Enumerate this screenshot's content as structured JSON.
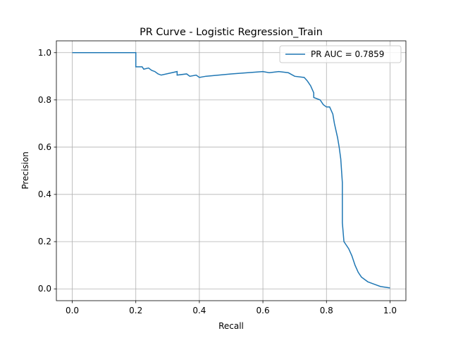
{
  "chart_data": {
    "type": "line",
    "title": "PR Curve - Logistic Regression_Train",
    "x_label": "Recall",
    "y_label": "Precision",
    "xlim": [
      -0.05,
      1.05
    ],
    "ylim": [
      -0.05,
      1.05
    ],
    "xticks": [
      {
        "value": 0,
        "label": "0.0"
      },
      0.2,
      0.4,
      0.6,
      0.8,
      {
        "value": 1,
        "label": "1.0"
      }
    ],
    "yticks": [
      {
        "value": 0,
        "label": "0.0"
      },
      0.2,
      0.4,
      0.6,
      0.8,
      {
        "value": 1,
        "label": "1.0"
      }
    ],
    "grid": true,
    "legend": "upper right",
    "series": [
      {
        "name": "PR AUC = 0.7859",
        "color": "#1f77b4",
        "x": [
          0,
          0.2,
          0.2,
          0.22,
          0.225,
          0.24,
          0.25,
          0.26,
          0.27,
          0.28,
          0.33,
          0.33,
          0.36,
          0.37,
          0.39,
          0.4,
          0.42,
          0.5,
          0.6,
          0.62,
          0.65,
          0.68,
          0.7,
          0.73,
          0.74,
          0.75,
          0.76,
          0.76,
          0.78,
          0.79,
          0.8,
          0.81,
          0.82,
          0.825,
          0.83,
          0.835,
          0.84,
          0.845,
          0.85,
          0.85,
          0.855,
          0.86,
          0.87,
          0.88,
          0.89,
          0.9,
          0.91,
          0.93,
          0.95,
          0.97,
          1.0
        ],
        "y": [
          1.0,
          1.0,
          0.94,
          0.94,
          0.93,
          0.935,
          0.925,
          0.92,
          0.91,
          0.905,
          0.92,
          0.905,
          0.91,
          0.9,
          0.905,
          0.895,
          0.9,
          0.91,
          0.92,
          0.915,
          0.92,
          0.915,
          0.9,
          0.895,
          0.88,
          0.86,
          0.83,
          0.81,
          0.8,
          0.78,
          0.77,
          0.77,
          0.74,
          0.7,
          0.67,
          0.64,
          0.6,
          0.55,
          0.45,
          0.28,
          0.2,
          0.19,
          0.17,
          0.14,
          0.1,
          0.07,
          0.05,
          0.03,
          0.02,
          0.01,
          0.004
        ]
      }
    ]
  }
}
